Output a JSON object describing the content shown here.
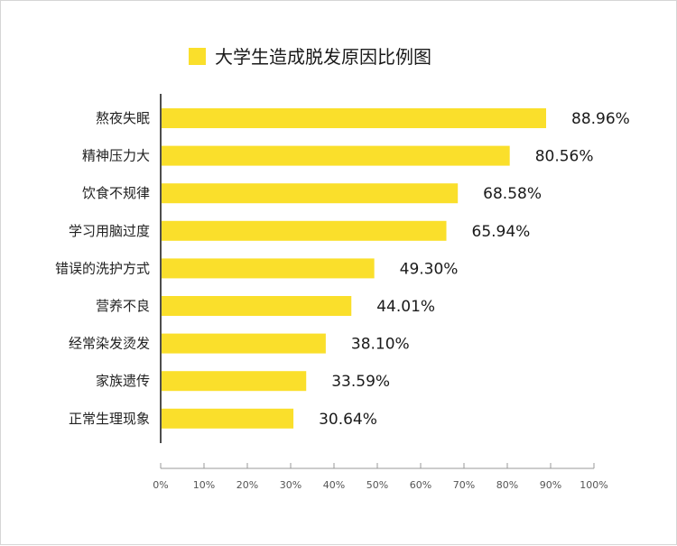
{
  "chart_data": {
    "type": "bar",
    "orientation": "horizontal",
    "title": "大学生造成脱发原因比例图",
    "categories": [
      "熬夜失眠",
      "精神压力大",
      "饮食不规律",
      "学习用脑过度",
      "错误的洗护方式",
      "营养不良",
      "经常染发烫发",
      "家族遗传",
      "正常生理现象"
    ],
    "values": [
      88.96,
      80.56,
      68.58,
      65.94,
      49.3,
      44.01,
      38.1,
      33.59,
      30.64
    ],
    "value_labels": [
      "88.96%",
      "80.56%",
      "68.58%",
      "65.94%",
      "49.30%",
      "44.01%",
      "38.10%",
      "33.59%",
      "30.64%"
    ],
    "x_ticks": [
      "0%",
      "10%",
      "20%",
      "30%",
      "40%",
      "50%",
      "60%",
      "70%",
      "80%",
      "90%",
      "100%"
    ],
    "xlim": [
      0,
      100
    ],
    "bar_color": "#fadf2b",
    "grid": false,
    "legend": "top-center"
  }
}
